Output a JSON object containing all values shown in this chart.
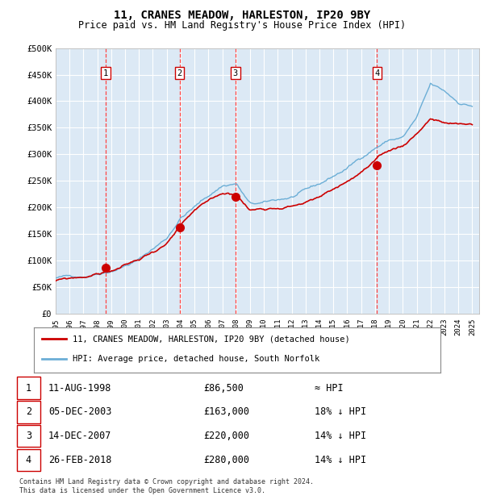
{
  "title": "11, CRANES MEADOW, HARLESTON, IP20 9BY",
  "subtitle": "Price paid vs. HM Land Registry's House Price Index (HPI)",
  "plot_bg_color": "#dce9f5",
  "hpi_color": "#6baed6",
  "price_color": "#cc0000",
  "sale_marker_color": "#cc0000",
  "vline_color": "#ff4444",
  "y_ticks": [
    0,
    50000,
    100000,
    150000,
    200000,
    250000,
    300000,
    350000,
    400000,
    450000,
    500000
  ],
  "y_tick_labels": [
    "£0",
    "£50K",
    "£100K",
    "£150K",
    "£200K",
    "£250K",
    "£300K",
    "£350K",
    "£400K",
    "£450K",
    "£500K"
  ],
  "sale_points": [
    {
      "year": 1998.6,
      "value": 86500,
      "label": "1"
    },
    {
      "year": 2003.92,
      "value": 163000,
      "label": "2"
    },
    {
      "year": 2007.95,
      "value": 220000,
      "label": "3"
    },
    {
      "year": 2018.15,
      "value": 280000,
      "label": "4"
    }
  ],
  "legend_entries": [
    {
      "color": "#cc0000",
      "label": "11, CRANES MEADOW, HARLESTON, IP20 9BY (detached house)"
    },
    {
      "color": "#6baed6",
      "label": "HPI: Average price, detached house, South Norfolk"
    }
  ],
  "table_rows": [
    {
      "num": "1",
      "date": "11-AUG-1998",
      "price": "£86,500",
      "hpi": "≈ HPI"
    },
    {
      "num": "2",
      "date": "05-DEC-2003",
      "price": "£163,000",
      "hpi": "18% ↓ HPI"
    },
    {
      "num": "3",
      "date": "14-DEC-2007",
      "price": "£220,000",
      "hpi": "14% ↓ HPI"
    },
    {
      "num": "4",
      "date": "26-FEB-2018",
      "price": "£280,000",
      "hpi": "14% ↓ HPI"
    }
  ],
  "footer": "Contains HM Land Registry data © Crown copyright and database right 2024.\nThis data is licensed under the Open Government Licence v3.0."
}
